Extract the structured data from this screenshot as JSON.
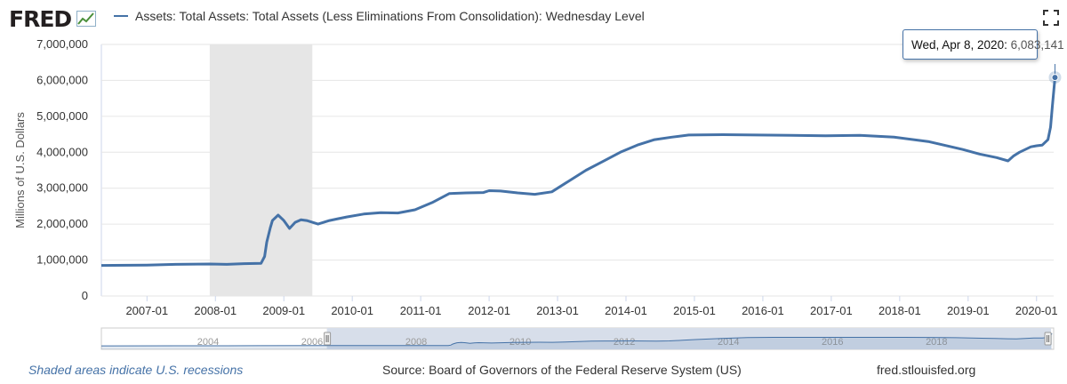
{
  "header": {
    "logo_text": "FRED",
    "series_title": "Assets: Total Assets: Total Assets (Less Eliminations From Consolidation): Wednesday Level"
  },
  "tooltip": {
    "date": "Wed, Apr 8, 2020:",
    "value": "6,083,141"
  },
  "footer": {
    "recession_note": "Shaded areas indicate U.S. recessions",
    "source": "Source: Board of Governors of the Federal Reserve System (US)",
    "url": "fred.stlouisfed.org"
  },
  "colors": {
    "line": "#4572a7",
    "recession": "#e6e6e6",
    "navigator_fill": "#d7deea",
    "grid": "#e6e6e6"
  },
  "icons": {
    "expand": "expand-icon",
    "logo_graph": "fred-graph-icon"
  },
  "chart_data": {
    "type": "line",
    "title": "Assets: Total Assets: Total Assets (Less Eliminations From Consolidation): Wednesday Level",
    "ylabel": "Millions of U.S. Dollars",
    "xlabel": "",
    "ylim": [
      0,
      7000000
    ],
    "xlim": [
      "2006-05",
      "2020-04"
    ],
    "y_ticks": [
      "0",
      "1,000,000",
      "2,000,000",
      "3,000,000",
      "4,000,000",
      "5,000,000",
      "6,000,000",
      "7,000,000"
    ],
    "x_ticks": [
      "2007-01",
      "2008-01",
      "2009-01",
      "2010-01",
      "2011-01",
      "2012-01",
      "2013-01",
      "2014-01",
      "2015-01",
      "2016-01",
      "2017-01",
      "2018-01",
      "2019-01",
      "2020-01"
    ],
    "recession": [
      "2007-12",
      "2009-06"
    ],
    "grid": true,
    "highlight": {
      "x": "2020-04-08",
      "y": 6083141
    },
    "series": [
      {
        "name": "Assets: Total Assets: Total Assets (Less Eliminations From Consolidation): Wednesday Level",
        "x": [
          "2006-05",
          "2007-01",
          "2007-06",
          "2007-12",
          "2008-03",
          "2008-06",
          "2008-09",
          "2008-09-20",
          "2008-10",
          "2008-10-20",
          "2008-11",
          "2008-12",
          "2009-01",
          "2009-02",
          "2009-03",
          "2009-04",
          "2009-05",
          "2009-06",
          "2009-07",
          "2009-09",
          "2009-12",
          "2010-03",
          "2010-06",
          "2010-09",
          "2010-12",
          "2011-03",
          "2011-06",
          "2011-09",
          "2011-12",
          "2012-01",
          "2012-03",
          "2012-06",
          "2012-09",
          "2012-12",
          "2013-03",
          "2013-06",
          "2013-09",
          "2013-12",
          "2014-03",
          "2014-06",
          "2014-09",
          "2014-12",
          "2015-06",
          "2015-12",
          "2016-06",
          "2016-12",
          "2017-06",
          "2017-12",
          "2018-06",
          "2018-12",
          "2019-03",
          "2019-06",
          "2019-08",
          "2019-09",
          "2019-10",
          "2019-12",
          "2020-01",
          "2020-02",
          "2020-03",
          "2020-03-15",
          "2020-03-25",
          "2020-04-08"
        ],
        "values": [
          850000,
          860000,
          880000,
          890000,
          880000,
          900000,
          910000,
          1100000,
          1500000,
          1900000,
          2100000,
          2250000,
          2100000,
          1880000,
          2050000,
          2120000,
          2100000,
          2050000,
          2000000,
          2100000,
          2200000,
          2280000,
          2320000,
          2310000,
          2400000,
          2600000,
          2850000,
          2870000,
          2880000,
          2930000,
          2920000,
          2870000,
          2830000,
          2900000,
          3200000,
          3500000,
          3750000,
          4000000,
          4200000,
          4350000,
          4420000,
          4480000,
          4490000,
          4480000,
          4470000,
          4460000,
          4470000,
          4420000,
          4300000,
          4080000,
          3950000,
          3850000,
          3760000,
          3900000,
          4000000,
          4150000,
          4180000,
          4200000,
          4350000,
          4700000,
          5300000,
          6083141
        ]
      }
    ]
  }
}
